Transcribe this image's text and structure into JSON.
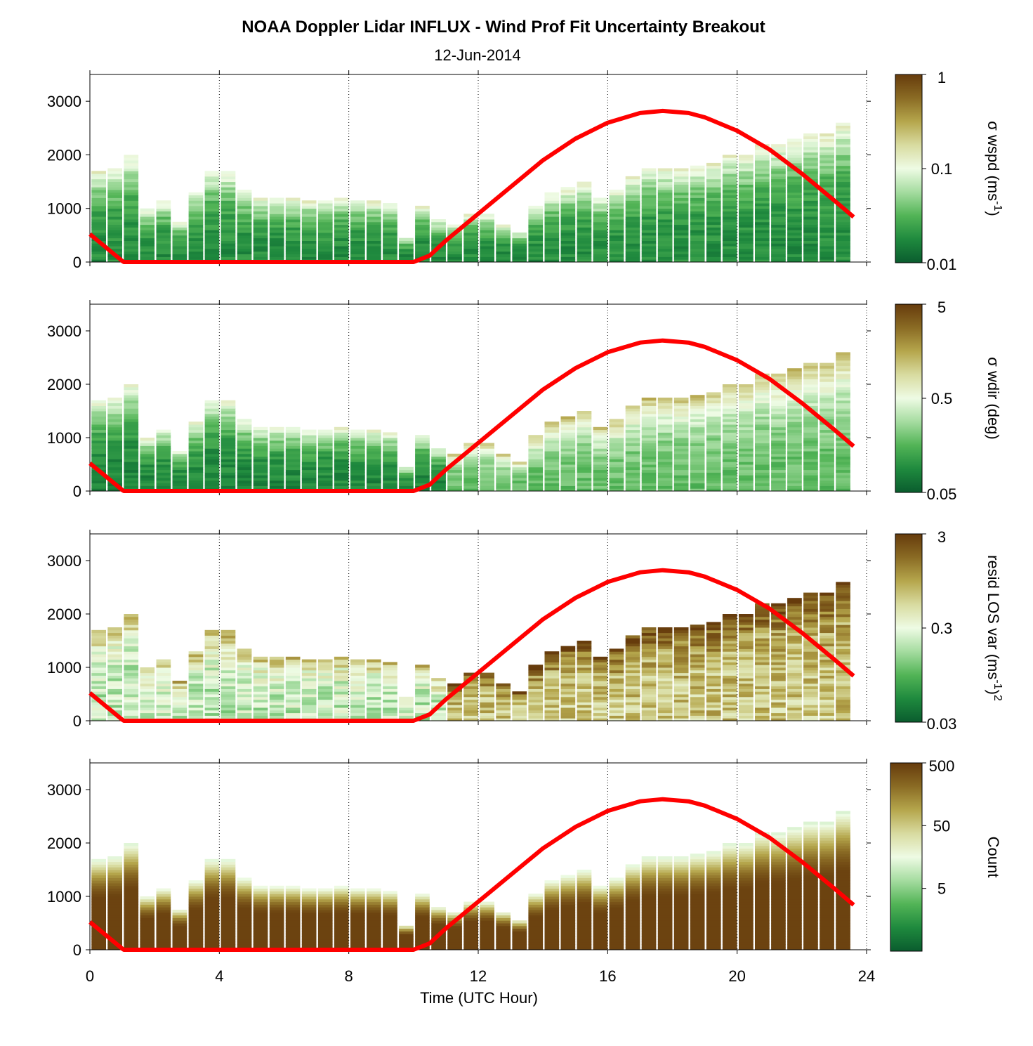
{
  "title": "NOAA Doppler Lidar INFLUX - Wind Prof Fit Uncertainty Breakout",
  "subtitle": "12-Jun-2014",
  "colors": {
    "sun_curve": "#ff0000",
    "colormap": [
      "#0a5c2e",
      "#1f8a3e",
      "#52b456",
      "#a5dca0",
      "#eefbe4",
      "#d8dba0",
      "#b5a64c",
      "#8a6b24",
      "#663b0c"
    ]
  },
  "chart_data": {
    "type": "heatmap",
    "xlabel": "Time (UTC Hour)",
    "xlim": [
      0,
      24
    ],
    "xticks": [
      0,
      4,
      8,
      12,
      16,
      20,
      24
    ],
    "ylim": [
      0,
      3500
    ],
    "yticks": [
      0,
      1000,
      2000,
      3000
    ],
    "grid": "dotted vertical lines at 4-hour intervals",
    "time_steps_hours": [
      0.0,
      0.5,
      1.0,
      1.5,
      2.0,
      2.5,
      3.0,
      3.5,
      4.0,
      4.5,
      5.0,
      5.5,
      6.0,
      6.5,
      7.0,
      7.5,
      8.0,
      8.5,
      9.0,
      9.5,
      10.0,
      10.5,
      11.0,
      11.5,
      12.0,
      12.5,
      13.0,
      13.5,
      14.0,
      14.5,
      15.0,
      15.5,
      16.0,
      16.5,
      17.0,
      17.5,
      18.0,
      18.5,
      19.0,
      19.5,
      20.0,
      20.5,
      21.0,
      21.5,
      22.0,
      22.5,
      23.0
    ],
    "data_top_heights_m": [
      1700,
      1750,
      2000,
      1000,
      1150,
      750,
      1300,
      1700,
      1700,
      1350,
      1200,
      1200,
      1200,
      1150,
      1150,
      1200,
      1150,
      1150,
      1100,
      450,
      1050,
      800,
      700,
      900,
      900,
      700,
      550,
      1050,
      1300,
      1400,
      1500,
      1200,
      1350,
      1600,
      1750,
      1750,
      1750,
      1800,
      1850,
      2000,
      2000,
      2200,
      2200,
      2300,
      2400,
      2400,
      2600
    ],
    "sun_elevation_curve": {
      "description": "red curve",
      "hours": [
        0.0,
        1.0,
        1.05,
        10.0,
        10.5,
        11.0,
        12.0,
        13.0,
        14.0,
        15.0,
        16.0,
        17.0,
        17.7,
        18.5,
        19.0,
        20.0,
        21.0,
        22.0,
        23.0,
        23.6
      ],
      "values": [
        520,
        20,
        0,
        0,
        120,
        400,
        900,
        1400,
        1900,
        2300,
        2600,
        2780,
        2820,
        2780,
        2700,
        2450,
        2100,
        1650,
        1150,
        840
      ]
    },
    "panels": [
      {
        "colorbar_label": "σ wspd (ms",
        "colorbar_sup": "-1",
        "colorbar_tail": ")",
        "colorbar_scale": "log",
        "colorbar_range": [
          0.01,
          1
        ],
        "colorbar_ticks": [
          "1",
          "0.1",
          "0.01"
        ]
      },
      {
        "colorbar_label": "σ wdir (deg)",
        "colorbar_sup": "",
        "colorbar_tail": "",
        "colorbar_scale": "log",
        "colorbar_range": [
          0.05,
          5
        ],
        "colorbar_ticks": [
          "5",
          "0.5",
          "0.05"
        ]
      },
      {
        "colorbar_label": "resid LOS var (ms",
        "colorbar_sup": "-1",
        "colorbar_tail": ")",
        "colorbar_sup2": "2",
        "colorbar_scale": "log",
        "colorbar_range": [
          0.03,
          3
        ],
        "colorbar_ticks": [
          "3",
          "0.3",
          "0.03"
        ]
      },
      {
        "colorbar_label": "Count",
        "colorbar_sup": "",
        "colorbar_tail": "",
        "colorbar_scale": "log",
        "colorbar_range": [
          0.5,
          500
        ],
        "colorbar_ticks": [
          "500",
          "50",
          "5"
        ]
      }
    ]
  }
}
